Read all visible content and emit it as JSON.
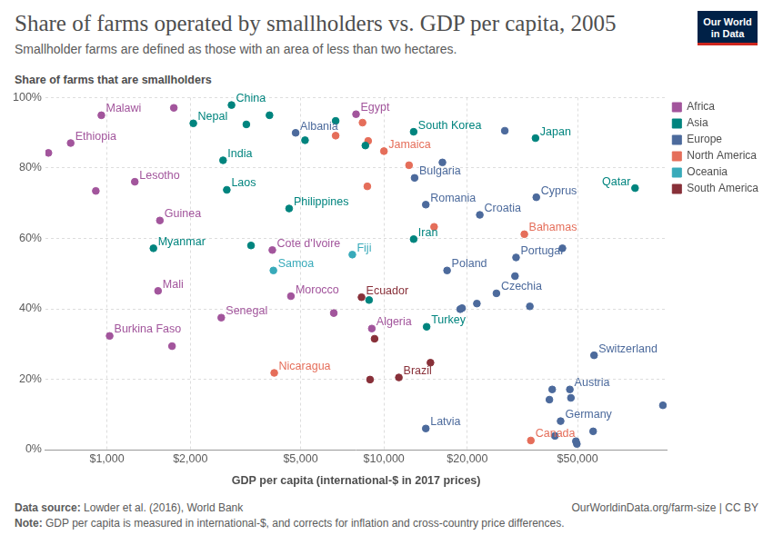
{
  "chart_data": {
    "type": "scatter",
    "title": "Share of farms operated by smallholders vs. GDP per capita, 2005",
    "subtitle": "Smallholder farms are defined as those with an area of less than two hectares.",
    "y_label": "Share of farms that are smallholders",
    "x_label": "GDP per capita (international-$ in 2017 prices)",
    "source": "Data source: Lowder et al. (2016), World Bank",
    "url": "OurWorldinData.org/farm-size | CC BY",
    "note": "Note: GDP per capita is measured in international-$, and corrects for inflation and cross-country price differences.",
    "logo": "Our World in Data",
    "log": "x",
    "grid": true,
    "legend": "right",
    "xlim": [
      600,
      105000
    ],
    "xticks": [
      {
        "value": 1000,
        "label": "$1,000"
      },
      {
        "value": 2000,
        "label": "$2,000"
      },
      {
        "value": 5000,
        "label": "$5,000"
      },
      {
        "value": 10000,
        "label": "$10,000"
      },
      {
        "value": 20000,
        "label": "$20,000"
      },
      {
        "value": 50000,
        "label": "$50,000"
      }
    ],
    "ylim": [
      0,
      100
    ],
    "yticks": [
      {
        "value": 0,
        "label": "0%"
      },
      {
        "value": 20,
        "label": "20%"
      },
      {
        "value": 40,
        "label": "40%"
      },
      {
        "value": 60,
        "label": "60%"
      },
      {
        "value": 80,
        "label": "80%"
      },
      {
        "value": 100,
        "label": "100%"
      }
    ],
    "series": [
      {
        "name": "Africa",
        "color": "#a2559c",
        "x": [
          615,
          955,
          740,
          912,
          1261,
          1744,
          1553,
          1530,
          1023,
          1718,
          2587,
          3955,
          4615,
          6590,
          7930,
          9040
        ],
        "values": [
          84.3,
          95.0,
          87.1,
          73.5,
          76.1,
          97.1,
          65.1,
          45.1,
          32.3,
          29.4,
          37.5,
          56.7,
          43.6,
          38.8,
          95.3,
          34.4
        ],
        "point_labels": [
          null,
          "Malawi",
          "Ethiopia",
          null,
          "Lesotho",
          null,
          "Guinea",
          "Mali",
          "Burkina Faso",
          null,
          "Senegal",
          "Cote d'Ivoire",
          "Morocco",
          null,
          "Egypt",
          "Algeria"
        ]
      },
      {
        "name": "Asia",
        "color": "#00847e",
        "x": [
          2817,
          2051,
          3187,
          3863,
          2626,
          2709,
          1472,
          3313,
          4547,
          5190,
          6694,
          8570,
          8838,
          12800,
          12800,
          14260,
          35240,
          80600
        ],
        "values": [
          97.9,
          92.7,
          92.4,
          95.0,
          82.2,
          73.8,
          57.2,
          58.0,
          68.5,
          87.9,
          93.4,
          86.4,
          42.5,
          90.3,
          59.8,
          34.9,
          88.5,
          74.3
        ],
        "point_labels": [
          "China",
          "Nepal",
          null,
          null,
          "India",
          "Laos",
          "Myanmar",
          null,
          "Philippines",
          null,
          null,
          null,
          null,
          "South Korea",
          "Iran",
          "Turkey",
          "Japan",
          "Qatar"
        ]
      },
      {
        "name": "Europe",
        "color": "#4c6a9c",
        "x": [
          4800,
          12900,
          16260,
          27300,
          14160,
          22180,
          35480,
          29980,
          44080,
          16900,
          29720,
          25470,
          33620,
          21650,
          19140,
          18850,
          57330,
          46880,
          40490,
          39560,
          47300,
          101600,
          43420,
          56900,
          14160,
          41400,
          49300,
          49700
        ],
        "values": [
          90.0,
          77.2,
          81.6,
          90.6,
          69.6,
          66.7,
          71.7,
          54.6,
          57.2,
          50.9,
          49.3,
          44.4,
          40.7,
          41.5,
          40.2,
          39.9,
          26.8,
          17.1,
          17.1,
          14.2,
          14.7,
          12.6,
          8.1,
          5.2,
          6.0,
          3.9,
          2.4,
          1.6
        ],
        "point_labels": [
          "Albania",
          "Bulgaria",
          null,
          null,
          "Romania",
          "Croatia",
          "Cyprus",
          "Portugal",
          null,
          "Poland",
          null,
          "Czechia",
          null,
          null,
          null,
          null,
          "Switzerland",
          "Austria",
          null,
          null,
          null,
          null,
          "Germany",
          null,
          "Latvia",
          null,
          null,
          null
        ]
      },
      {
        "name": "North America",
        "color": "#e56e5a",
        "x": [
          8370,
          6694,
          8770,
          10000,
          12320,
          8710,
          15170,
          32120,
          4018,
          33900
        ],
        "values": [
          92.9,
          89.2,
          87.7,
          84.8,
          80.8,
          74.8,
          63.3,
          61.2,
          21.8,
          2.6
        ],
        "point_labels": [
          null,
          null,
          null,
          "Jamaica",
          null,
          null,
          null,
          "Bahamas",
          "Nicaragua",
          "Canada"
        ]
      },
      {
        "name": "Oceania",
        "color": "#38aaba",
        "x": [
          7690,
          3990
        ],
        "values": [
          55.4,
          50.9
        ],
        "point_labels": [
          "Fiji",
          "Samoa"
        ]
      },
      {
        "name": "South America",
        "color": "#883039",
        "x": [
          8300,
          9250,
          8910,
          11320,
          14720
        ],
        "values": [
          43.3,
          31.5,
          19.9,
          20.5,
          24.7
        ],
        "point_labels": [
          "Ecuador",
          null,
          null,
          "Brazil",
          null
        ]
      }
    ]
  }
}
